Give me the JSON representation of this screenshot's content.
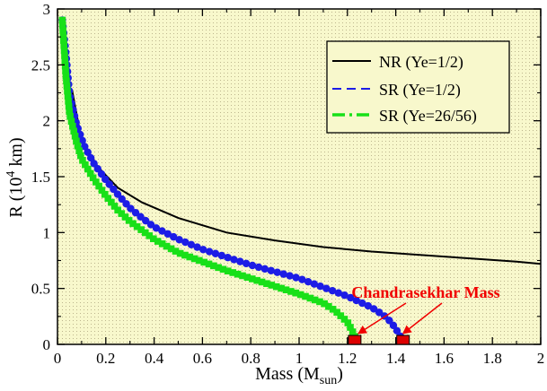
{
  "chart_data": {
    "type": "line",
    "xlabel": "Mass (M",
    "xlabel_sub": "sun",
    "xlabel_close": ")",
    "ylabel": "R (10",
    "ylabel_sup": "4",
    "ylabel_close": " km)",
    "xlim": [
      0,
      2
    ],
    "ylim": [
      0,
      3
    ],
    "x_ticks": [
      0,
      0.2,
      0.4,
      0.6,
      0.8,
      1,
      1.2,
      1.4,
      1.6,
      1.8,
      2
    ],
    "x_tick_labels": [
      "0",
      "0.2",
      "0.4",
      "0.6",
      "0.8",
      "1",
      "1.2",
      "1.4",
      "1.6",
      "1.8",
      "2"
    ],
    "y_ticks": [
      0,
      0.5,
      1,
      1.5,
      2,
      2.5,
      3
    ],
    "y_tick_labels": [
      "0",
      "0.5",
      "1",
      "1.5",
      "2",
      "2.5",
      "3"
    ],
    "legend_position": "top-right",
    "series": [
      {
        "name": "NR (Ye=1/2)",
        "style": "solid",
        "color": "#000000",
        "markers": false,
        "points": [
          [
            0.06,
            2.28
          ],
          [
            0.1,
            1.82
          ],
          [
            0.17,
            1.58
          ],
          [
            0.25,
            1.4
          ],
          [
            0.35,
            1.27
          ],
          [
            0.5,
            1.13
          ],
          [
            0.7,
            1.0
          ],
          [
            0.9,
            0.93
          ],
          [
            1.1,
            0.87
          ],
          [
            1.3,
            0.83
          ],
          [
            1.5,
            0.8
          ],
          [
            1.7,
            0.77
          ],
          [
            1.9,
            0.74
          ],
          [
            2.0,
            0.72
          ]
        ]
      },
      {
        "name": "SR (Ye=1/2)",
        "style": "dashed",
        "color": "#1c1ce6",
        "markers": true,
        "points": [
          [
            0.02,
            2.9
          ],
          [
            0.035,
            2.6
          ],
          [
            0.05,
            2.23
          ],
          [
            0.08,
            1.96
          ],
          [
            0.11,
            1.78
          ],
          [
            0.15,
            1.62
          ],
          [
            0.2,
            1.47
          ],
          [
            0.25,
            1.34
          ],
          [
            0.3,
            1.22
          ],
          [
            0.35,
            1.13
          ],
          [
            0.4,
            1.05
          ],
          [
            0.5,
            0.94
          ],
          [
            0.6,
            0.85
          ],
          [
            0.7,
            0.78
          ],
          [
            0.8,
            0.71
          ],
          [
            0.9,
            0.65
          ],
          [
            1.0,
            0.59
          ],
          [
            1.1,
            0.51
          ],
          [
            1.2,
            0.43
          ],
          [
            1.3,
            0.33
          ],
          [
            1.35,
            0.26
          ],
          [
            1.38,
            0.2
          ],
          [
            1.4,
            0.14
          ],
          [
            1.42,
            0.07
          ],
          [
            1.43,
            0.02
          ]
        ]
      },
      {
        "name": "SR (Ye=26/56)",
        "style": "dashdot",
        "color": "#18e018",
        "markers": true,
        "points": [
          [
            0.02,
            2.9
          ],
          [
            0.035,
            2.4
          ],
          [
            0.05,
            2.06
          ],
          [
            0.08,
            1.8
          ],
          [
            0.1,
            1.66
          ],
          [
            0.15,
            1.48
          ],
          [
            0.2,
            1.33
          ],
          [
            0.25,
            1.2
          ],
          [
            0.3,
            1.1
          ],
          [
            0.4,
            0.94
          ],
          [
            0.5,
            0.82
          ],
          [
            0.6,
            0.74
          ],
          [
            0.7,
            0.66
          ],
          [
            0.8,
            0.59
          ],
          [
            0.9,
            0.52
          ],
          [
            1.0,
            0.45
          ],
          [
            1.1,
            0.37
          ],
          [
            1.15,
            0.3
          ],
          [
            1.2,
            0.2
          ],
          [
            1.22,
            0.12
          ],
          [
            1.24,
            0.03
          ]
        ]
      }
    ],
    "annotation": {
      "text": "Chandrasekhar Mass",
      "color": "#f00000",
      "targets": [
        1.23,
        1.43
      ]
    }
  },
  "colors": {
    "plot_background": "#f8f8cc",
    "grid_dots": "#b8b28a",
    "marker_fill": "#dd0000"
  }
}
